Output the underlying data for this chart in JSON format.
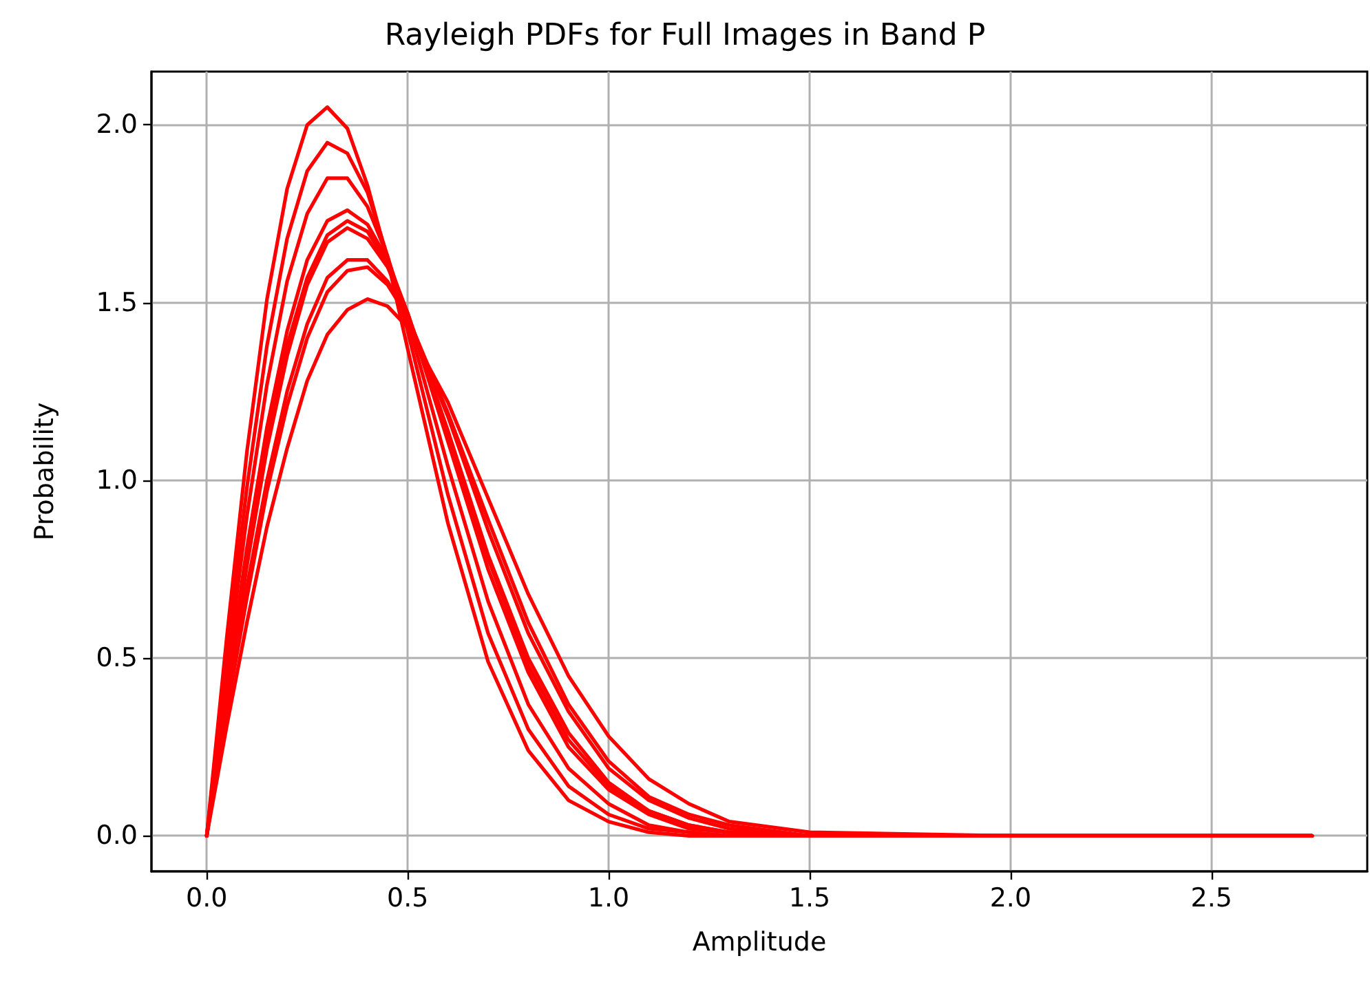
{
  "chart_data": {
    "type": "line",
    "title": "Rayleigh PDFs for Full Images in Band P",
    "xlabel": "Amplitude",
    "ylabel": "Probability",
    "x": [
      0,
      0.05,
      0.1,
      0.15,
      0.2,
      0.25,
      0.3,
      0.35,
      0.4,
      0.45,
      0.5,
      0.6,
      0.7,
      0.8,
      0.9,
      1.0,
      1.1,
      1.2,
      1.3,
      1.5,
      2.0,
      2.75
    ],
    "series": [
      {
        "color": "#ff0000",
        "values": [
          0,
          0.56,
          1.08,
          1.51,
          1.82,
          2.0,
          2.05,
          1.99,
          1.83,
          1.62,
          1.37,
          0.88,
          0.49,
          0.24,
          0.1,
          0.04,
          0.01,
          0.0,
          0.0,
          0,
          0,
          0
        ]
      },
      {
        "color": "#ff0000",
        "values": [
          0,
          0.51,
          0.98,
          1.38,
          1.68,
          1.87,
          1.95,
          1.92,
          1.81,
          1.63,
          1.42,
          0.96,
          0.57,
          0.3,
          0.14,
          0.06,
          0.02,
          0.01,
          0.0,
          0,
          0,
          0
        ]
      },
      {
        "color": "#ff0000",
        "values": [
          0,
          0.46,
          0.9,
          1.27,
          1.56,
          1.75,
          1.85,
          1.85,
          1.77,
          1.63,
          1.45,
          1.04,
          0.66,
          0.37,
          0.19,
          0.09,
          0.03,
          0.01,
          0.0,
          0,
          0,
          0
        ]
      },
      {
        "color": "#ff0000",
        "values": [
          0,
          0.42,
          0.81,
          1.15,
          1.42,
          1.62,
          1.73,
          1.76,
          1.72,
          1.62,
          1.47,
          1.11,
          0.75,
          0.46,
          0.25,
          0.13,
          0.06,
          0.02,
          0.01,
          0,
          0,
          0
        ]
      },
      {
        "color": "#ff0000",
        "values": [
          0,
          0.4,
          0.78,
          1.11,
          1.38,
          1.57,
          1.69,
          1.73,
          1.7,
          1.61,
          1.47,
          1.13,
          0.78,
          0.48,
          0.27,
          0.14,
          0.07,
          0.03,
          0.01,
          0,
          0,
          0
        ]
      },
      {
        "color": "#ff0000",
        "values": [
          0,
          0.39,
          0.76,
          1.09,
          1.35,
          1.55,
          1.67,
          1.71,
          1.68,
          1.6,
          1.47,
          1.14,
          0.79,
          0.5,
          0.29,
          0.15,
          0.07,
          0.03,
          0.01,
          0,
          0,
          0
        ]
      },
      {
        "color": "#ff0000",
        "values": [
          0,
          0.36,
          0.7,
          1.0,
          1.25,
          1.44,
          1.57,
          1.62,
          1.62,
          1.56,
          1.46,
          1.18,
          0.86,
          0.57,
          0.35,
          0.19,
          0.1,
          0.05,
          0.02,
          0,
          0,
          0
        ]
      },
      {
        "color": "#ff0000",
        "values": [
          0,
          0.35,
          0.67,
          0.97,
          1.21,
          1.4,
          1.53,
          1.59,
          1.6,
          1.55,
          1.46,
          1.19,
          0.89,
          0.6,
          0.37,
          0.21,
          0.11,
          0.06,
          0.03,
          0,
          0,
          0
        ]
      },
      {
        "color": "#ff0000",
        "values": [
          0,
          0.31,
          0.6,
          0.87,
          1.09,
          1.28,
          1.41,
          1.48,
          1.51,
          1.49,
          1.43,
          1.22,
          0.95,
          0.68,
          0.45,
          0.28,
          0.16,
          0.09,
          0.04,
          0.01,
          0,
          0
        ]
      }
    ],
    "xlim": [
      -0.1375,
      2.8875
    ],
    "ylim": [
      -0.1,
      2.15
    ],
    "xticks": [
      {
        "value": 0,
        "label": "0.0"
      },
      {
        "value": 0.5,
        "label": "0.5"
      },
      {
        "value": 1,
        "label": "1.0"
      },
      {
        "value": 1.5,
        "label": "1.5"
      },
      {
        "value": 2,
        "label": "2.0"
      },
      {
        "value": 2.5,
        "label": "2.5"
      }
    ],
    "yticks": [
      {
        "value": 0,
        "label": "0.0"
      },
      {
        "value": 0.5,
        "label": "0.5"
      },
      {
        "value": 1,
        "label": "1.0"
      },
      {
        "value": 1.5,
        "label": "1.5"
      },
      {
        "value": 2,
        "label": "2.0"
      }
    ],
    "grid": true
  }
}
